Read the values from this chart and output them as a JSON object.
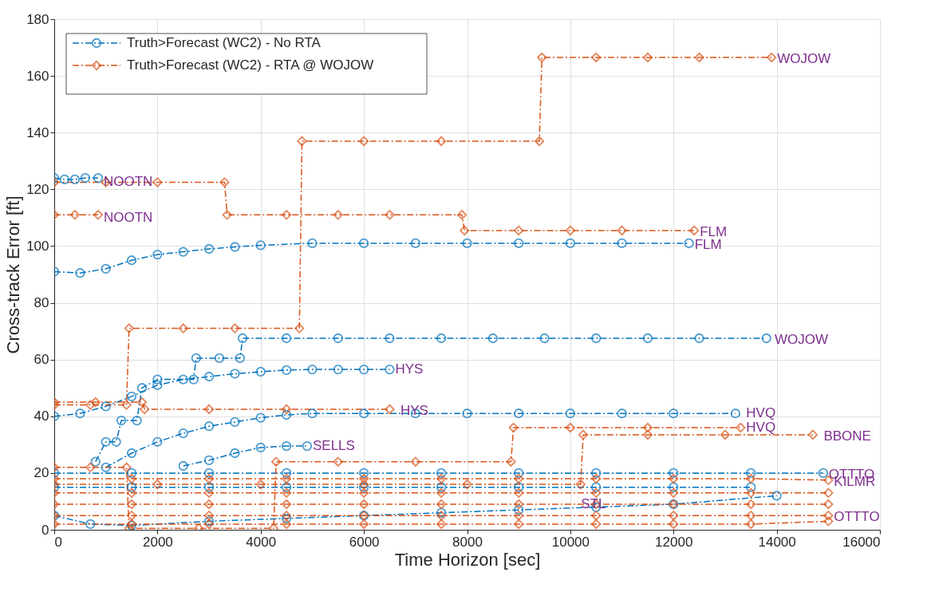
{
  "chart_data": {
    "type": "line",
    "xlabel": "Time Horizon [sec]",
    "ylabel": "Cross-track Error [ft]",
    "xlim": [
      0,
      16000
    ],
    "ylim": [
      0,
      180
    ],
    "xticks": [
      0,
      2000,
      4000,
      6000,
      8000,
      10000,
      12000,
      14000,
      16000
    ],
    "yticks": [
      0,
      20,
      40,
      60,
      80,
      100,
      120,
      140,
      160,
      180
    ],
    "grid": true,
    "legend": "top left",
    "line_style": "dashed",
    "series": [
      {
        "name": "Truth>Forecast (WC2) - No RTA",
        "color": "#0072bd",
        "marker": "circle",
        "x": [
          0,
          200,
          400,
          600,
          850
        ],
        "values": [
          124,
          123.5,
          123.5,
          124,
          124
        ]
      },
      {
        "color": "#0072bd",
        "marker": "circle",
        "x": [
          0,
          500,
          1000,
          1500,
          2000,
          2500,
          3000,
          3500,
          4000,
          5000,
          6000,
          7000,
          8000,
          9000,
          10000,
          11000,
          12300
        ],
        "values": [
          91,
          90.5,
          92,
          95,
          97,
          98,
          99,
          99.7,
          100.3,
          101,
          101,
          101,
          101,
          101,
          101,
          101,
          101
        ]
      },
      {
        "color": "#0072bd",
        "marker": "circle",
        "x": [
          0,
          500,
          1000,
          1500,
          2000,
          2500,
          3000,
          3500,
          4000,
          4500,
          5000,
          5500,
          6000,
          6500
        ],
        "values": [
          40,
          41,
          43.5,
          47,
          51,
          53,
          54,
          55,
          55.7,
          56.3,
          56.5,
          56.5,
          56.5,
          56.5
        ]
      },
      {
        "color": "#0072bd",
        "marker": "circle",
        "x": [
          800,
          1000,
          1200,
          1300,
          1600,
          1700,
          2000,
          2700,
          2750,
          3200,
          3600,
          3650,
          4500,
          5500,
          6500,
          7500,
          8500,
          9500,
          10500,
          11500,
          12500,
          13800
        ],
        "values": [
          24,
          31,
          31,
          38.5,
          38.5,
          50,
          53,
          53,
          60.5,
          60.5,
          60.5,
          67.5,
          67.5,
          67.5,
          67.5,
          67.5,
          67.5,
          67.5,
          67.5,
          67.5,
          67.5,
          67.5
        ]
      },
      {
        "color": "#0072bd",
        "marker": "circle",
        "x": [
          1000,
          1500,
          2000,
          2500,
          3000,
          3500,
          4000,
          4500,
          5000,
          6000,
          7000,
          8000,
          9000,
          10000,
          11000,
          12000,
          13200
        ],
        "values": [
          22,
          27,
          31,
          34,
          36.5,
          38,
          39.5,
          40.5,
          41,
          41,
          41,
          41,
          41,
          41,
          41,
          41,
          41
        ]
      },
      {
        "color": "#0072bd",
        "marker": "circle",
        "x": [
          2500,
          3000,
          3500,
          4000,
          4500,
          4900
        ],
        "values": [
          22.5,
          24.5,
          27,
          29,
          29.5,
          29.5
        ]
      },
      {
        "color": "#0072bd",
        "marker": "circle",
        "x": [
          0,
          1500,
          3000,
          4500,
          6000,
          7500,
          9000,
          10500,
          12000,
          13500,
          14900
        ],
        "values": [
          20,
          20,
          20,
          20,
          20,
          20,
          20,
          20,
          20,
          20,
          20
        ]
      },
      {
        "color": "#0072bd",
        "marker": "circle",
        "x": [
          0,
          1500,
          3000,
          4500,
          6000,
          7500,
          9000,
          10500,
          12000,
          13500
        ],
        "values": [
          15,
          15,
          15,
          15,
          15,
          15,
          15,
          15,
          15,
          15
        ]
      },
      {
        "color": "#0072bd",
        "marker": "circle",
        "x": [
          0,
          700,
          1500,
          3000,
          4500,
          6000,
          7500,
          9000,
          10500,
          12000,
          14000
        ],
        "values": [
          5,
          2,
          1.5,
          3,
          4,
          5,
          6,
          7,
          8,
          9,
          12
        ]
      },
      {
        "name": "Truth>Forecast (WC2) - RTA @ WOJOW",
        "color": "#d95319",
        "marker": "diamond",
        "x": [
          0,
          1000,
          2000,
          3300,
          3350,
          4500,
          5500,
          6500,
          7900,
          7950,
          9000,
          10000,
          11000,
          12400
        ],
        "values": [
          122.5,
          122.5,
          122.5,
          122.5,
          111,
          111,
          111,
          111,
          111,
          105.5,
          105.5,
          105.5,
          105.5,
          105.5
        ]
      },
      {
        "color": "#d95319",
        "marker": "diamond",
        "x": [
          0,
          400,
          850
        ],
        "values": [
          111,
          111,
          111
        ]
      },
      {
        "color": "#d95319",
        "marker": "diamond",
        "x": [
          0,
          700,
          1400,
          1450,
          2500,
          3500,
          4750,
          4800,
          6000,
          7500,
          9400,
          9450,
          10500,
          11500,
          12500,
          13900
        ],
        "values": [
          44,
          44,
          44,
          71,
          71,
          71,
          71,
          137,
          137,
          137,
          137,
          166.5,
          166.5,
          166.5,
          166.5,
          166.5
        ]
      },
      {
        "color": "#d95319",
        "marker": "diamond",
        "x": [
          0,
          800,
          1700,
          1750,
          3000,
          4500,
          6500
        ],
        "values": [
          45,
          45,
          45,
          42.5,
          42.5,
          42.5,
          42.5
        ]
      },
      {
        "color": "#d95319",
        "marker": "diamond",
        "x": [
          0,
          700,
          1400,
          1450,
          2800,
          4250,
          4300,
          5500,
          7000,
          8850,
          8900,
          10000,
          11500,
          13300
        ],
        "values": [
          22,
          22,
          22,
          0.5,
          0.5,
          0.5,
          24,
          24,
          24,
          24,
          36,
          36,
          36,
          36
        ]
      },
      {
        "color": "#d95319",
        "marker": "diamond",
        "x": [
          0,
          2000,
          4000,
          6000,
          8000,
          10200,
          10250,
          11500,
          13000,
          14700
        ],
        "values": [
          16,
          16,
          16,
          16,
          16,
          16,
          33.5,
          33.5,
          33.5,
          33.5
        ]
      },
      {
        "color": "#d95319",
        "marker": "diamond",
        "x": [
          0,
          1500,
          3000,
          4500,
          6000,
          7500,
          9000,
          10500,
          12000,
          13500,
          15000
        ],
        "values": [
          18,
          18,
          18,
          18,
          18,
          18,
          18,
          18,
          18,
          18,
          17.5
        ]
      },
      {
        "color": "#d95319",
        "marker": "diamond",
        "x": [
          0,
          1500,
          3000,
          4500,
          6000,
          7500,
          9000,
          10500,
          12000,
          13500,
          15000
        ],
        "values": [
          13,
          13,
          13,
          13,
          13,
          13,
          13,
          13,
          13,
          13,
          13
        ]
      },
      {
        "color": "#d95319",
        "marker": "diamond",
        "x": [
          0,
          1500,
          3000,
          4500,
          6000,
          7500,
          9000,
          10500,
          12000,
          13500,
          15000
        ],
        "values": [
          9,
          9,
          9,
          9,
          9,
          9,
          9,
          9,
          9,
          9,
          9
        ]
      },
      {
        "color": "#d95319",
        "marker": "diamond",
        "x": [
          0,
          1500,
          3000,
          4500,
          6000,
          7500,
          9000,
          10500,
          12000,
          13500,
          15000
        ],
        "values": [
          5,
          5,
          5,
          5,
          5,
          5,
          5,
          5,
          5,
          5,
          5
        ]
      },
      {
        "color": "#d95319",
        "marker": "diamond",
        "x": [
          0,
          1500,
          3000,
          4500,
          6000,
          7500,
          9000,
          10500,
          12000,
          13500,
          15000
        ],
        "values": [
          2,
          2,
          2,
          2,
          2,
          2,
          2,
          2,
          2,
          2,
          3
        ]
      }
    ],
    "annotations": [
      {
        "text": "NOOTN",
        "x": 850,
        "y": 122.5
      },
      {
        "text": "NOOTN",
        "x": 850,
        "y": 110
      },
      {
        "text": "FLM",
        "x": 12400,
        "y": 105
      },
      {
        "text": "FLM",
        "x": 12300,
        "y": 100.5
      },
      {
        "text": "WOJOW",
        "x": 13900,
        "y": 166
      },
      {
        "text": "WOJOW",
        "x": 13850,
        "y": 67
      },
      {
        "text": "HYS",
        "x": 6500,
        "y": 56.5
      },
      {
        "text": "HYS",
        "x": 6600,
        "y": 42
      },
      {
        "text": "HVQ",
        "x": 13300,
        "y": 41
      },
      {
        "text": "HVQ",
        "x": 13300,
        "y": 36
      },
      {
        "text": "BBONE",
        "x": 14800,
        "y": 33
      },
      {
        "text": "SELLS",
        "x": 4900,
        "y": 29.5
      },
      {
        "text": "OTTTO",
        "x": 14900,
        "y": 19.5
      },
      {
        "text": "KILMR",
        "x": 15000,
        "y": 17
      },
      {
        "text": "STL",
        "x": 10100,
        "y": 9
      },
      {
        "text": "OTTTO",
        "x": 15000,
        "y": 4.5
      }
    ]
  }
}
